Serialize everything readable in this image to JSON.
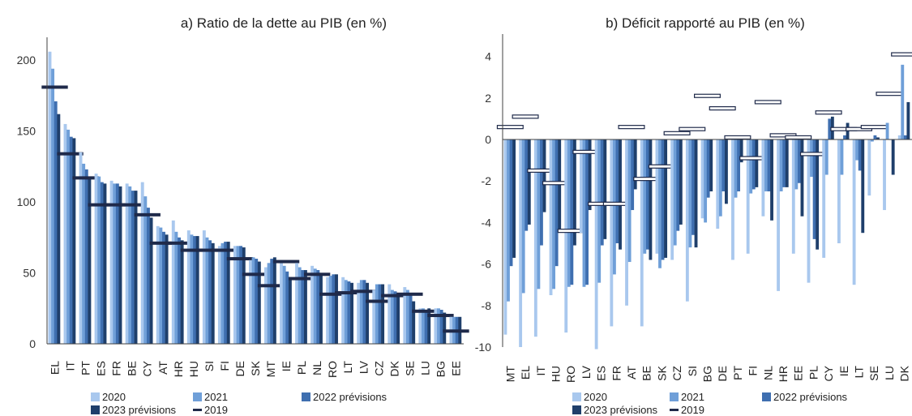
{
  "colors": {
    "c2020": "#a9c8ee",
    "c2021": "#6f9fd8",
    "c2022": "#3f6fb0",
    "c2023": "#1f3f6b",
    "c2019": "#1f2a4a"
  },
  "chart_data": [
    {
      "type": "bar",
      "title": "a) Ratio de la dette au PIB (en %)",
      "ylim": [
        0,
        215
      ],
      "yticks": [
        0,
        50,
        100,
        150,
        200
      ],
      "categories": [
        "EL",
        "IT",
        "PT",
        "ES",
        "FR",
        "BE",
        "CY",
        "AT",
        "HR",
        "HU",
        "SI",
        "FI",
        "DE",
        "SK",
        "MT",
        "IE",
        "PL",
        "NL",
        "RO",
        "LT",
        "LV",
        "CZ",
        "DK",
        "SE",
        "LU",
        "BG",
        "EE"
      ],
      "series": [
        {
          "name": "2020",
          "values": [
            206,
            155,
            135,
            120,
            115,
            113,
            114,
            83,
            87,
            80,
            80,
            69,
            69,
            59,
            54,
            59,
            57,
            55,
            47,
            47,
            43,
            38,
            42,
            40,
            25,
            25,
            19
          ]
        },
        {
          "name": "2021",
          "values": [
            194,
            151,
            127,
            118,
            113,
            111,
            104,
            82,
            79,
            77,
            75,
            71,
            69,
            61,
            57,
            55,
            54,
            53,
            48,
            45,
            45,
            42,
            38,
            38,
            25,
            25,
            19
          ]
        },
        {
          "name": "2022 prévisions",
          "values": [
            171,
            146,
            123,
            114,
            113,
            108,
            96,
            79,
            75,
            76,
            73,
            72,
            69,
            60,
            60,
            51,
            52,
            52,
            49,
            44,
            45,
            42,
            37,
            34,
            24,
            24,
            19
          ]
        },
        {
          "name": "2023 prévisions",
          "values": [
            162,
            145,
            118,
            113,
            111,
            108,
            89,
            77,
            73,
            76,
            71,
            72,
            68,
            58,
            61,
            47,
            52,
            50,
            49,
            43,
            43,
            42,
            35,
            30,
            25,
            22,
            19
          ]
        },
        {
          "name": "2019",
          "values": [
            181,
            134,
            117,
            98,
            98,
            98,
            91,
            71,
            71,
            66,
            66,
            66,
            60,
            49,
            41,
            58,
            46,
            49,
            35,
            36,
            37,
            30,
            34,
            35,
            23,
            20,
            9
          ]
        }
      ]
    },
    {
      "type": "bar",
      "title": "b) Déficit rapporté au PIB (en %)",
      "ylim": [
        -10,
        5
      ],
      "yticks": [
        -10,
        -8,
        -6,
        -4,
        -2,
        0,
        2,
        4
      ],
      "categories": [
        "MT",
        "EL",
        "IT",
        "HU",
        "RO",
        "LV",
        "ES",
        "FR",
        "AT",
        "BE",
        "SK",
        "CZ",
        "SI",
        "BG",
        "DE",
        "PT",
        "FI",
        "NL",
        "HR",
        "EE",
        "PL",
        "CY",
        "IE",
        "LT",
        "SE",
        "LU",
        "DK"
      ],
      "series": [
        {
          "name": "2020",
          "values": [
            -9.4,
            -10,
            -9.5,
            -7.5,
            -9.3,
            -4.5,
            -10.1,
            -9,
            -8,
            -9,
            -5.5,
            -5.8,
            -7.8,
            -3.8,
            -4.3,
            -5.8,
            -5.5,
            -3.7,
            -7.3,
            -5.5,
            -6.9,
            -5.7,
            -5,
            -7,
            -2.7,
            -3.4,
            0.2
          ]
        },
        {
          "name": "2021",
          "values": [
            -7.8,
            -7.4,
            -7.2,
            -7.2,
            -7.1,
            -7.1,
            -6.9,
            -6.5,
            -5.9,
            -5.5,
            -6.2,
            -5.1,
            -5.2,
            -4,
            -3.7,
            -2.8,
            -2.6,
            -2.5,
            -2.5,
            -2.4,
            -1.8,
            -1.7,
            -1.7,
            -1,
            -0.1,
            0.8,
            3.6
          ]
        },
        {
          "name": "2022 prévisions",
          "values": [
            -6.1,
            -4.4,
            -5.1,
            -6.1,
            -7,
            -7,
            -5.1,
            -5,
            -3.4,
            -5.3,
            -5.8,
            -4.4,
            -4.6,
            -2.8,
            -2.5,
            -2.5,
            -2.4,
            -2.5,
            -2.3,
            -2.1,
            -4.8,
            1,
            0.2,
            -1.5,
            0.2,
            0,
            0.2
          ]
        },
        {
          "name": "2023 prévisions",
          "values": [
            -5.7,
            -4.1,
            -3.5,
            -4.3,
            -5.1,
            -3.4,
            -4.8,
            -5.3,
            -2.4,
            -5.8,
            -5.7,
            -4.1,
            -5.2,
            -2.5,
            -3.1,
            -1.1,
            -2.3,
            -3.9,
            -2.3,
            -3.7,
            -5.3,
            1.1,
            0.8,
            -4.5,
            0.1,
            -1.7,
            1.8
          ]
        },
        {
          "name": "2019",
          "values": [
            0.6,
            1.1,
            -1.5,
            -2.1,
            -4.4,
            -0.6,
            -3.1,
            -3.1,
            0.6,
            -1.9,
            -1.3,
            0.3,
            0.5,
            2.1,
            1.5,
            0.1,
            -0.9,
            1.8,
            0.2,
            0.1,
            -0.7,
            1.3,
            0.5,
            0.5,
            0.6,
            2.2,
            4.1
          ]
        }
      ]
    }
  ]
}
